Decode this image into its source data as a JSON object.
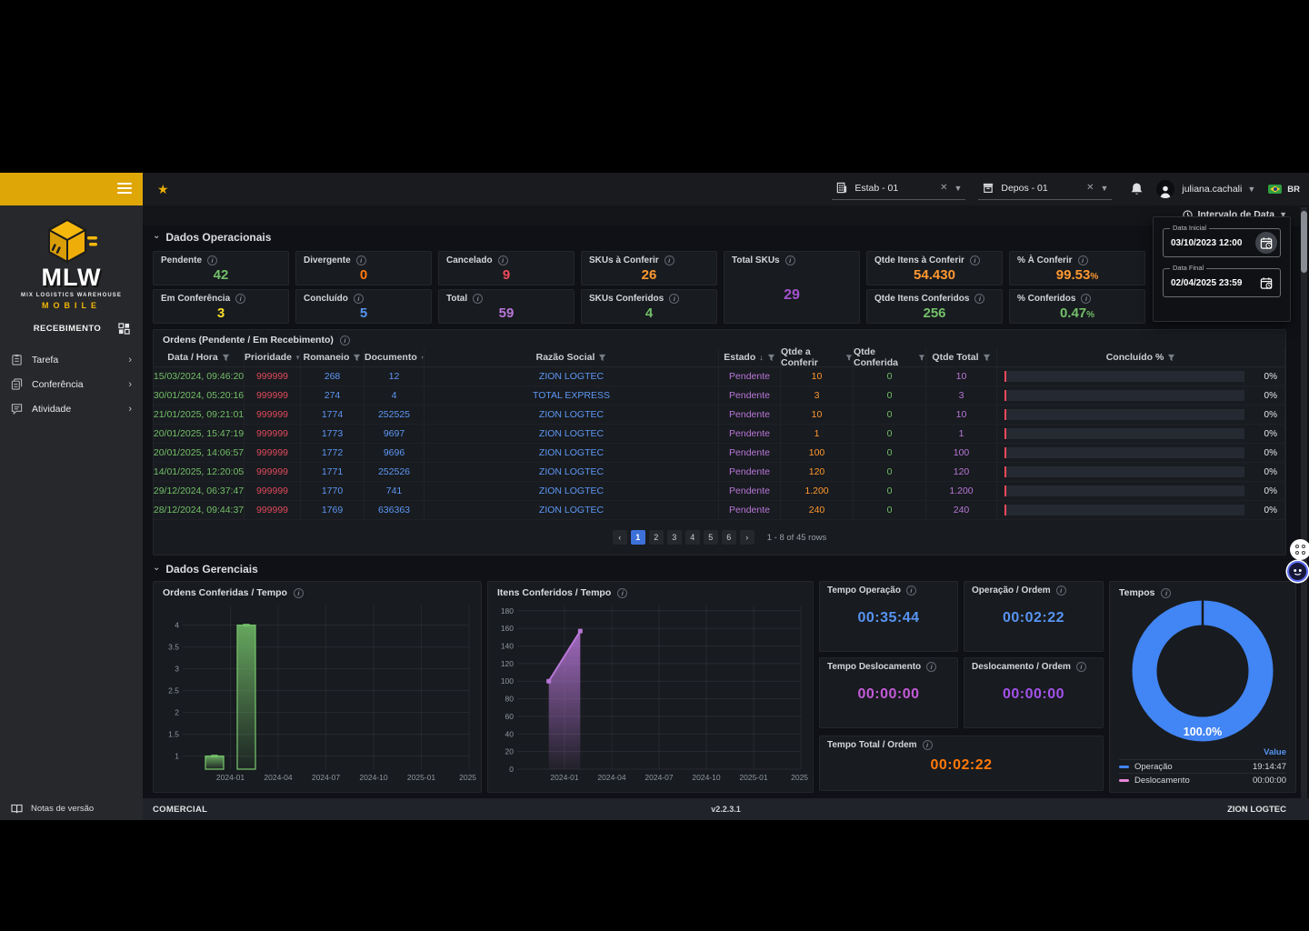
{
  "topbar": {
    "star_icon": "★",
    "establishment": {
      "label": "Estab - 01"
    },
    "deposit": {
      "label": "Depos - 01"
    },
    "user_name": "juliana.cachali",
    "locale": "BR"
  },
  "sidebar": {
    "brand": {
      "name": "MLW",
      "tagline": "MIX LOGISTICS WAREHOUSE",
      "product": "MOBILE"
    },
    "section_title": "RECEBIMENTO",
    "items": [
      {
        "label": "Tarefa"
      },
      {
        "label": "Conferência"
      },
      {
        "label": "Atividade"
      }
    ],
    "release_notes": "Notas de versão"
  },
  "date_panel": {
    "title": "Intervalo de Data",
    "start_label": "Data Inicial",
    "start_value": "03/10/2023 12:00",
    "end_label": "Data Final",
    "end_value": "02/04/2025 23:59"
  },
  "operational": {
    "section_title": "Dados Operacionais",
    "cards": [
      {
        "label": "Pendente",
        "value": "42",
        "color": "#73bf69"
      },
      {
        "label": "Divergente",
        "value": "0",
        "color": "#ff780a"
      },
      {
        "label": "Cancelado",
        "value": "9",
        "color": "#f2495c"
      },
      {
        "label": "SKUs à Conferir",
        "value": "26",
        "color": "#ff9830"
      },
      {
        "label": "Total SKUs",
        "value": "29",
        "color": "#a352cc",
        "tall": true
      },
      {
        "label": "Qtde Itens à Conferir",
        "value": "54.430",
        "color": "#ff9830"
      },
      {
        "label": "% À Conferir",
        "value": "99.53",
        "suffix": "%",
        "color": "#ff9830"
      },
      {
        "label": "Em Conferência",
        "value": "3",
        "color": "#fade2a"
      },
      {
        "label": "Concluído",
        "value": "5",
        "color": "#5794f2"
      },
      {
        "label": "Total",
        "value": "59",
        "color": "#b877d9"
      },
      {
        "label": "SKUs Conferidos",
        "value": "4",
        "color": "#73bf69"
      },
      {
        "label": "Qtde Itens Conferidos",
        "value": "256",
        "color": "#73bf69"
      },
      {
        "label": "% Conferidos",
        "value": "0.47",
        "suffix": "%",
        "color": "#73bf69"
      }
    ]
  },
  "orders": {
    "title": "Ordens (Pendente / Em Recebimento)",
    "columns": [
      "Data / Hora",
      "Prioridade",
      "Romaneio",
      "Documento",
      "Razão Social",
      "Estado",
      "Qtde a Conferir",
      "Qtde Conferida",
      "Qtde Total",
      "Concluído %"
    ],
    "rows": [
      {
        "datetime": "15/03/2024, 09:46:20",
        "priority": "999999",
        "romaneio": "268",
        "document": "12",
        "company": "ZION LOGTEC",
        "status": "Pendente",
        "to_check": "10",
        "checked": "0",
        "total": "10",
        "progress": "0%"
      },
      {
        "datetime": "30/01/2024, 05:20:16",
        "priority": "999999",
        "romaneio": "274",
        "document": "4",
        "company": "TOTAL EXPRESS",
        "status": "Pendente",
        "to_check": "3",
        "checked": "0",
        "total": "3",
        "progress": "0%"
      },
      {
        "datetime": "21/01/2025, 09:21:01",
        "priority": "999999",
        "romaneio": "1774",
        "document": "252525",
        "company": "ZION LOGTEC",
        "status": "Pendente",
        "to_check": "10",
        "checked": "0",
        "total": "10",
        "progress": "0%"
      },
      {
        "datetime": "20/01/2025, 15:47:19",
        "priority": "999999",
        "romaneio": "1773",
        "document": "9697",
        "company": "ZION LOGTEC",
        "status": "Pendente",
        "to_check": "1",
        "checked": "0",
        "total": "1",
        "progress": "0%"
      },
      {
        "datetime": "20/01/2025, 14:06:57",
        "priority": "999999",
        "romaneio": "1772",
        "document": "9696",
        "company": "ZION LOGTEC",
        "status": "Pendente",
        "to_check": "100",
        "checked": "0",
        "total": "100",
        "progress": "0%"
      },
      {
        "datetime": "14/01/2025, 12:20:05",
        "priority": "999999",
        "romaneio": "1771",
        "document": "252526",
        "company": "ZION LOGTEC",
        "status": "Pendente",
        "to_check": "120",
        "checked": "0",
        "total": "120",
        "progress": "0%"
      },
      {
        "datetime": "29/12/2024, 06:37:47",
        "priority": "999999",
        "romaneio": "1770",
        "document": "741",
        "company": "ZION LOGTEC",
        "status": "Pendente",
        "to_check": "1.200",
        "checked": "0",
        "total": "1.200",
        "progress": "0%"
      },
      {
        "datetime": "28/12/2024, 09:44:37",
        "priority": "999999",
        "romaneio": "1769",
        "document": "636363",
        "company": "ZION LOGTEC",
        "status": "Pendente",
        "to_check": "240",
        "checked": "0",
        "total": "240",
        "progress": "0%"
      }
    ],
    "pagination": {
      "prev": "‹",
      "next": "›",
      "pages": [
        "1",
        "2",
        "3",
        "4",
        "5",
        "6"
      ],
      "active_page": "1",
      "summary": "1 - 8 of 45 rows"
    }
  },
  "management": {
    "section_title": "Dados Gerenciais",
    "time_cards": [
      {
        "label": "Tempo Operação",
        "value": "00:35:44",
        "color": "#5794f2"
      },
      {
        "label": "Operação / Ordem",
        "value": "00:02:22",
        "color": "#5794f2"
      },
      {
        "label": "Tempo Deslocamento",
        "value": "00:00:00",
        "color": "#c45ad9"
      },
      {
        "label": "Deslocamento / Ordem",
        "value": "00:00:00",
        "color": "#a352ec"
      },
      {
        "label": "Tempo Total / Ordem",
        "value": "00:02:22",
        "color": "#ff780a",
        "wide": true
      }
    ]
  },
  "chart_data": [
    {
      "type": "bar",
      "title": "Ordens Conferidas / Tempo",
      "color": "#73bf69",
      "x": [
        "2023-12",
        "2024-02"
      ],
      "values": [
        1,
        4
      ],
      "xlim": [
        "2023-10",
        "2025-04"
      ],
      "ylim": [
        0.7,
        4.45
      ],
      "yticks": [
        1,
        1.5,
        2,
        2.5,
        3,
        3.5,
        4
      ],
      "xticks": [
        {
          "v": "2024-01",
          "label": "2024-01"
        },
        {
          "v": "2024-04",
          "label": "2024-04"
        },
        {
          "v": "2024-07",
          "label": "2024-07"
        },
        {
          "v": "2024-10",
          "label": "2024-10"
        },
        {
          "v": "2025-01",
          "label": "2025-01"
        },
        {
          "v": "2025-04",
          "label": "2025-"
        }
      ],
      "grid": true,
      "legend": "none"
    },
    {
      "type": "area",
      "title": "Itens Conferidos / Tempo",
      "color": "#b877d9",
      "x": [
        "2023-12",
        "2024-02"
      ],
      "values": [
        100,
        157
      ],
      "xlim": [
        "2023-10",
        "2025-04"
      ],
      "ylim": [
        0,
        186
      ],
      "yticks": [
        0,
        20,
        40,
        60,
        80,
        100,
        120,
        140,
        160,
        180
      ],
      "xticks": [
        {
          "v": "2024-01",
          "label": "2024-01"
        },
        {
          "v": "2024-04",
          "label": "2024-04"
        },
        {
          "v": "2024-07",
          "label": "2024-07"
        },
        {
          "v": "2024-10",
          "label": "2024-10"
        },
        {
          "v": "2025-01",
          "label": "2025-01"
        },
        {
          "v": "2025-04",
          "label": "2025-"
        }
      ],
      "grid": true,
      "legend": "none"
    },
    {
      "type": "donut",
      "title": "Tempos",
      "center_label": "100.0%",
      "legend_header": "Value",
      "slices": [
        {
          "name": "Operação",
          "value": "19:14:47",
          "pct": 100,
          "color": "#4285f4"
        },
        {
          "name": "Deslocamento",
          "value": "00:00:00",
          "pct": 0,
          "color": "#e685d6"
        }
      ],
      "legend": "bottom-table"
    }
  ],
  "footer": {
    "left": "COMERCIAL",
    "center": "v2.2.3.1",
    "right": "ZION LOGTEC"
  }
}
